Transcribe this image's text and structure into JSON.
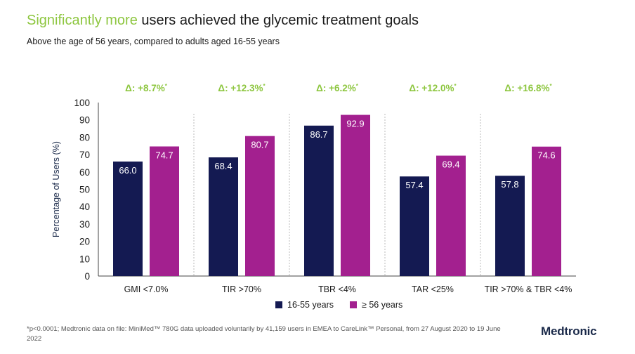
{
  "title_highlight": "Significantly more",
  "title_rest": " users achieved the glycemic treatment goals",
  "subtitle": "Above the age of 56 years, compared to adults aged 16-55 years",
  "footnote": "*p<0.0001; Medtronic data on file: MiniMed™ 780G data uploaded voluntarily by 41,159 users in EMEA  to CareLink™ Personal, from 27 August 2020  to 19 June 2022",
  "logo_text": "Medtronic",
  "colors": {
    "series1": "#141a52",
    "series2": "#a3208f",
    "delta": "#8dc63f",
    "axis": "#444444",
    "divider": "#bbbbbb"
  },
  "chart_data": {
    "type": "bar",
    "categories": [
      "GMI <7.0%",
      "TIR >70%",
      "TBR <4%",
      "TAR <25%",
      "TIR >70% & TBR <4%"
    ],
    "series": [
      {
        "name": "16-55 years",
        "values": [
          66.0,
          68.4,
          86.7,
          57.4,
          57.8
        ]
      },
      {
        "name": "≥ 56 years",
        "values": [
          74.7,
          80.7,
          92.9,
          69.4,
          74.6
        ]
      }
    ],
    "data_labels": [
      [
        "66.0",
        "68.4",
        "86.7",
        "57.4",
        "57.8"
      ],
      [
        "74.7",
        "80.7",
        "92.9",
        "69.4",
        "74.6"
      ]
    ],
    "annotations": [
      "Δ: +8.7%",
      "Δ: +12.3%",
      "Δ: +6.2%",
      "Δ: +12.0%",
      "Δ: +16.8%"
    ],
    "annotation_mark": "*",
    "ylabel": "Percentage of Users (%)",
    "xlabel": "",
    "ylim": [
      0,
      100
    ],
    "yticks": [
      0,
      10,
      20,
      30,
      40,
      50,
      60,
      70,
      80,
      90,
      100
    ],
    "legend_position": "bottom",
    "grid": false
  }
}
